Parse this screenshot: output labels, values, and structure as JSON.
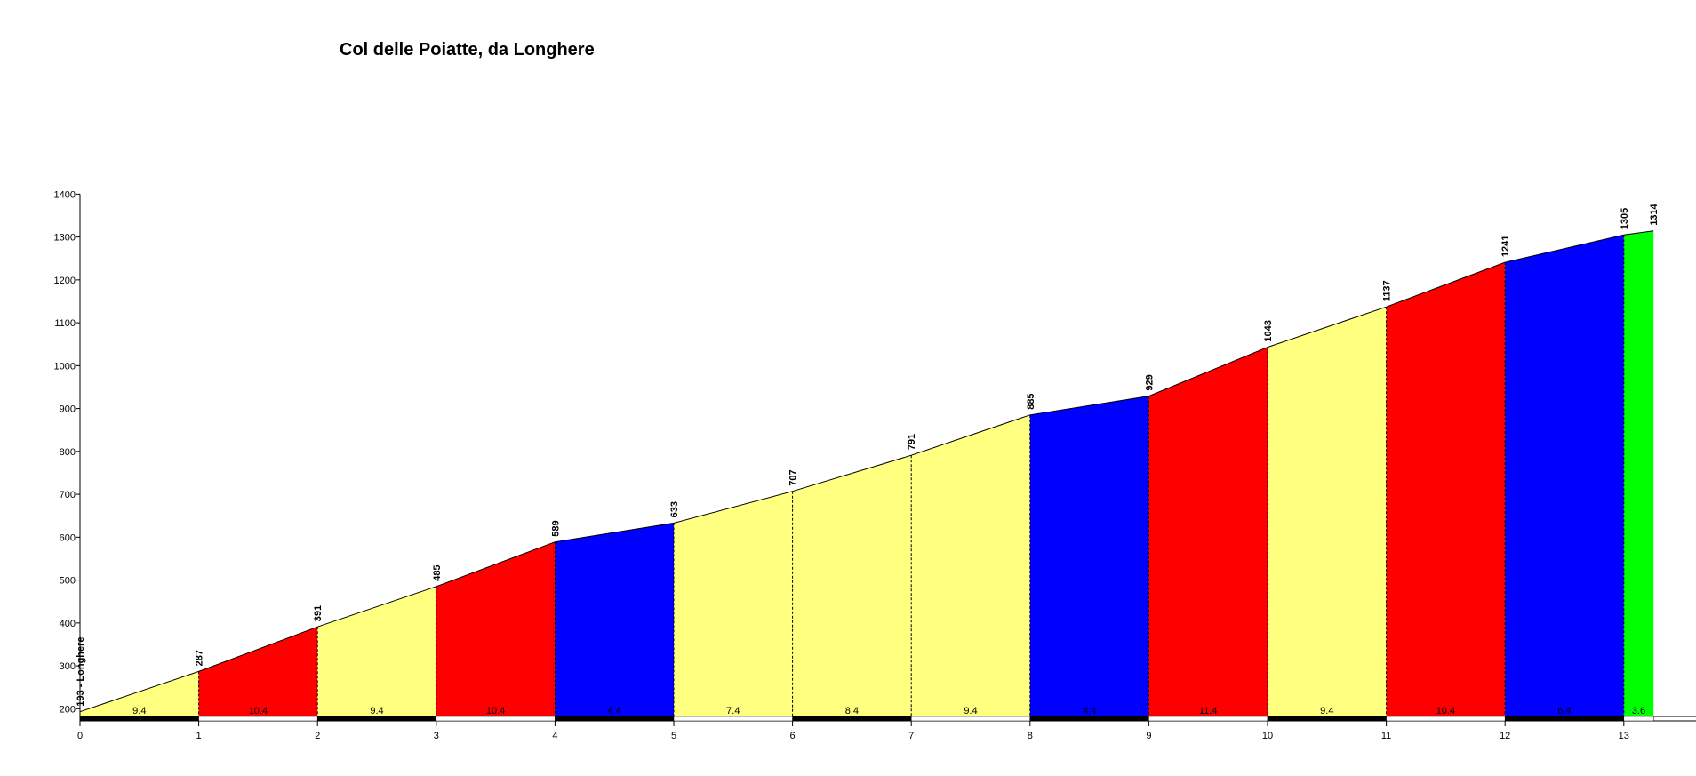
{
  "chart_data": {
    "type": "area",
    "title": "Col delle Poiatte, da Longhere",
    "xlabel": "",
    "ylabel": "",
    "xlim": [
      0,
      13.25
    ],
    "ylim": [
      180,
      1400
    ],
    "y_ticks": [
      200,
      300,
      400,
      500,
      600,
      700,
      800,
      900,
      1000,
      1100,
      1200,
      1300,
      1400
    ],
    "x_ticks": [
      0,
      1,
      2,
      3,
      4,
      5,
      6,
      7,
      8,
      9,
      10,
      11,
      12,
      13
    ],
    "grid": false,
    "profile": [
      {
        "km": 0,
        "altitude": 193,
        "label": "193 - Longhere"
      },
      {
        "km": 1,
        "altitude": 287,
        "label": "287"
      },
      {
        "km": 2,
        "altitude": 391,
        "label": "391"
      },
      {
        "km": 3,
        "altitude": 485,
        "label": "485"
      },
      {
        "km": 4,
        "altitude": 589,
        "label": "589"
      },
      {
        "km": 5,
        "altitude": 633,
        "label": "633"
      },
      {
        "km": 6,
        "altitude": 707,
        "label": "707"
      },
      {
        "km": 7,
        "altitude": 791,
        "label": "791"
      },
      {
        "km": 8,
        "altitude": 885,
        "label": "885"
      },
      {
        "km": 9,
        "altitude": 929,
        "label": "929"
      },
      {
        "km": 10,
        "altitude": 1043,
        "label": "1043"
      },
      {
        "km": 11,
        "altitude": 1137,
        "label": "1137"
      },
      {
        "km": 12,
        "altitude": 1241,
        "label": "1241"
      },
      {
        "km": 13,
        "altitude": 1305,
        "label": "1305"
      },
      {
        "km": 13.25,
        "altitude": 1314,
        "label": "1314"
      }
    ],
    "segments": [
      {
        "from": 0,
        "to": 1,
        "gradient": "9.4",
        "color": "#ffff80"
      },
      {
        "from": 1,
        "to": 2,
        "gradient": "10.4",
        "color": "#ff0000"
      },
      {
        "from": 2,
        "to": 3,
        "gradient": "9.4",
        "color": "#ffff80"
      },
      {
        "from": 3,
        "to": 4,
        "gradient": "10.4",
        "color": "#ff0000"
      },
      {
        "from": 4,
        "to": 5,
        "gradient": "4.4",
        "color": "#0000ff"
      },
      {
        "from": 5,
        "to": 6,
        "gradient": "7.4",
        "color": "#ffff80"
      },
      {
        "from": 6,
        "to": 7,
        "gradient": "8.4",
        "color": "#ffff80"
      },
      {
        "from": 7,
        "to": 8,
        "gradient": "9.4",
        "color": "#ffff80"
      },
      {
        "from": 8,
        "to": 9,
        "gradient": "4.4",
        "color": "#0000ff"
      },
      {
        "from": 9,
        "to": 10,
        "gradient": "11.4",
        "color": "#ff0000"
      },
      {
        "from": 10,
        "to": 11,
        "gradient": "9.4",
        "color": "#ffff80"
      },
      {
        "from": 11,
        "to": 12,
        "gradient": "10.4",
        "color": "#ff0000"
      },
      {
        "from": 12,
        "to": 13,
        "gradient": "6.4",
        "color": "#0000ff"
      },
      {
        "from": 13,
        "to": 13.25,
        "gradient": "3.6",
        "color": "#00ff00"
      }
    ]
  }
}
